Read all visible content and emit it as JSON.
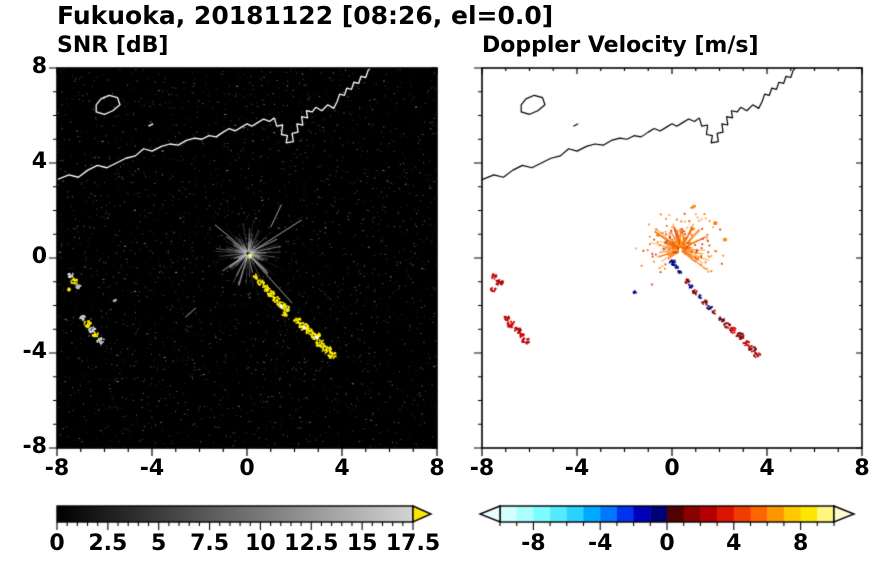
{
  "title": "Fukuoka, 20181122 [08:26, el=0.0]",
  "station": "Fukuoka",
  "date": "20181122",
  "time": "08:26",
  "elevation": "el=0.0",
  "coastline": {
    "segments": [
      [
        [
          -8,
          3.3
        ],
        [
          -7.5,
          3.5
        ],
        [
          -7.1,
          3.4
        ],
        [
          -6.7,
          3.7
        ],
        [
          -6.3,
          3.9
        ],
        [
          -5.9,
          3.8
        ],
        [
          -5.5,
          4.0
        ],
        [
          -5.1,
          4.2
        ],
        [
          -4.7,
          4.3
        ],
        [
          -4.35,
          4.6
        ],
        [
          -4.0,
          4.5
        ],
        [
          -3.6,
          4.7
        ],
        [
          -3.25,
          4.8
        ],
        [
          -2.9,
          4.75
        ],
        [
          -2.55,
          4.95
        ],
        [
          -2.2,
          5.05
        ],
        [
          -1.9,
          5.0
        ],
        [
          -1.6,
          5.15
        ],
        [
          -1.3,
          5.1
        ],
        [
          -1.0,
          5.3
        ],
        [
          -0.75,
          5.45
        ],
        [
          -0.5,
          5.35
        ],
        [
          -0.25,
          5.5
        ],
        [
          0.0,
          5.65
        ],
        [
          0.2,
          5.55
        ],
        [
          0.45,
          5.7
        ],
        [
          0.7,
          5.85
        ],
        [
          0.95,
          5.75
        ],
        [
          1.15,
          5.9
        ]
      ],
      [
        [
          1.15,
          5.9
        ],
        [
          1.25,
          5.55
        ],
        [
          1.5,
          5.6
        ],
        [
          1.45,
          5.2
        ],
        [
          1.7,
          5.15
        ],
        [
          1.65,
          4.85
        ],
        [
          1.95,
          4.9
        ],
        [
          1.9,
          5.25
        ],
        [
          2.15,
          5.3
        ],
        [
          2.1,
          5.65
        ],
        [
          2.35,
          5.6
        ],
        [
          2.3,
          5.95
        ],
        [
          2.55,
          5.9
        ],
        [
          2.5,
          6.2
        ],
        [
          2.75,
          6.15
        ],
        [
          2.9,
          6.35
        ]
      ],
      [
        [
          2.9,
          6.35
        ],
        [
          3.15,
          6.2
        ],
        [
          3.4,
          6.45
        ],
        [
          3.65,
          6.3
        ],
        [
          3.8,
          6.6
        ],
        [
          3.9,
          6.9
        ],
        [
          4.1,
          6.85
        ],
        [
          4.2,
          7.15
        ],
        [
          4.4,
          7.1
        ],
        [
          4.5,
          7.4
        ],
        [
          4.7,
          7.35
        ],
        [
          4.8,
          7.65
        ],
        [
          5.0,
          7.6
        ],
        [
          5.1,
          7.9
        ],
        [
          5.2,
          8.0
        ]
      ],
      [
        [
          -4.15,
          5.55
        ],
        [
          -3.95,
          5.65
        ]
      ]
    ],
    "islands": [
      [
        [
          -6.35,
          6.15
        ],
        [
          -6.0,
          6.05
        ],
        [
          -5.65,
          6.2
        ],
        [
          -5.35,
          6.45
        ],
        [
          -5.45,
          6.75
        ],
        [
          -5.8,
          6.85
        ],
        [
          -6.15,
          6.7
        ],
        [
          -6.35,
          6.45
        ]
      ]
    ]
  },
  "chart_data": [
    {
      "type": "heatmap",
      "subtype": "radar-ppi",
      "title": "SNR [dB]",
      "xlim": [
        -8,
        8
      ],
      "ylim": [
        -8,
        8
      ],
      "xticks": [
        -8,
        -4,
        0,
        4,
        8
      ],
      "yticks": [
        8,
        4,
        0,
        -4,
        -8
      ],
      "minor_tick_step": 1,
      "background": "#000000",
      "coast_color": "#ffffff",
      "colorbar": {
        "min": 0,
        "max": 17.5,
        "scale": "grayscale",
        "tick_values": [
          0,
          2.5,
          5,
          7.5,
          10,
          12.5,
          15,
          17.5
        ],
        "tick_labels": [
          "0",
          "2.5",
          "5",
          "7.5",
          "10",
          "12.5",
          "15",
          "17.5"
        ],
        "minor_tick_step": 0.5,
        "over_arrow_color": "#ffe600"
      },
      "features": {
        "noise": {
          "count": 4200,
          "seed": 7
        },
        "spray": {
          "cx": 0.05,
          "cy": 0.2,
          "count": 120,
          "rmin": 0.15,
          "rmax": 1.5,
          "color": "#c3c3c3"
        },
        "streaks": [
          [
            0.1,
            0.2,
            2.3,
            1.6
          ],
          [
            0.1,
            0.1,
            1.9,
            -1.9
          ],
          [
            0.1,
            0.2,
            -1.35,
            1.4
          ],
          [
            -2.6,
            -2.5,
            -2.15,
            -2.1
          ],
          [
            1.0,
            1.3,
            1.45,
            2.25
          ]
        ],
        "echo_blobs": [
          [
            0.08,
            0.12,
            0.07,
            "#ffff66"
          ],
          [
            0.35,
            -0.75,
            0.1,
            "#ffee00"
          ],
          [
            0.55,
            -1.0,
            0.12,
            "#ffee00"
          ],
          [
            0.78,
            -1.25,
            0.13,
            "#ffee00"
          ],
          [
            1.0,
            -1.5,
            0.14,
            "#ffee00"
          ],
          [
            1.2,
            -1.72,
            0.12,
            "#ffee00"
          ],
          [
            1.42,
            -1.95,
            0.15,
            "#ffee00"
          ],
          [
            1.45,
            -2.0,
            0.05,
            "#ffffff"
          ],
          [
            1.65,
            -2.1,
            0.12,
            "#eeee22"
          ],
          [
            1.55,
            -2.35,
            0.1,
            "#ffee00"
          ],
          [
            2.1,
            -2.6,
            0.13,
            "#ffee00"
          ],
          [
            2.35,
            -2.85,
            0.16,
            "#ffee00"
          ],
          [
            2.4,
            -2.9,
            0.06,
            "#ffffff"
          ],
          [
            2.6,
            -3.05,
            0.14,
            "#ffee00"
          ],
          [
            2.85,
            -3.25,
            0.17,
            "#ffee00"
          ],
          [
            2.9,
            -3.3,
            0.06,
            "#ffffff"
          ],
          [
            3.05,
            -3.55,
            0.15,
            "#ffee00"
          ],
          [
            3.3,
            -3.8,
            0.16,
            "#ffee00"
          ],
          [
            3.55,
            -4.05,
            0.14,
            "#ffee00"
          ],
          [
            -7.45,
            -0.7,
            0.1,
            "#dddddd"
          ],
          [
            -7.3,
            -0.95,
            0.12,
            "#ffee00"
          ],
          [
            -7.15,
            -1.15,
            0.09,
            "#cccccc"
          ],
          [
            -7.5,
            -1.3,
            0.07,
            "#ffee00"
          ],
          [
            -6.95,
            -2.5,
            0.1,
            "#dddddd"
          ],
          [
            -6.75,
            -2.75,
            0.13,
            "#ffee00"
          ],
          [
            -6.55,
            -3.0,
            0.12,
            "#dddddd"
          ],
          [
            -6.4,
            -3.2,
            0.11,
            "#ffee00"
          ],
          [
            -6.2,
            -3.45,
            0.13,
            "#cccccc"
          ],
          [
            -5.6,
            -1.75,
            0.05,
            "#aaaaaa"
          ]
        ]
      }
    },
    {
      "type": "heatmap",
      "subtype": "radar-ppi",
      "title": "Doppler Velocity [m/s]",
      "xlim": [
        -8,
        8
      ],
      "ylim": [
        -8,
        8
      ],
      "xticks": [
        -8,
        -4,
        0,
        4,
        8
      ],
      "yticks": [
        8,
        4,
        0,
        -4,
        -8
      ],
      "minor_tick_step": 1,
      "background": "#ffffff",
      "coast_color": "#000000",
      "colorbar": {
        "min": -10,
        "max": 10,
        "scale": "cyan-blue-navy-darkred-red-orange-yellow",
        "tick_values": [
          -8,
          -4,
          0,
          4,
          8
        ],
        "tick_labels": [
          "-8",
          "-4",
          "0",
          "4",
          "8"
        ],
        "minor_tick_step": 1,
        "colors": [
          "#d4ffff",
          "#aaffff",
          "#7dfcff",
          "#55eaff",
          "#2bd2ff",
          "#00aaff",
          "#0077ff",
          "#0033ee",
          "#0000bb",
          "#000077",
          "#550000",
          "#8b0000",
          "#b40000",
          "#dc1400",
          "#f03c00",
          "#ff6400",
          "#ff9600",
          "#ffc800",
          "#ffe600",
          "#fff780"
        ],
        "under_arrow_color": "#eaffff",
        "over_arrow_color": "#fffbd0"
      },
      "features": {
        "spray": {
          "cx": 0.35,
          "cy": 0.35,
          "count": 100,
          "rmin": 0.1,
          "rmax": 1.4,
          "angle_deg": [
            -40,
            220
          ],
          "colors": [
            "#ff8c00",
            "#ff7518",
            "#ff9a33",
            "#e84e00"
          ]
        },
        "scatter": {
          "count": 150,
          "rmax": 1.9,
          "angle_deg": [
            -40,
            230
          ],
          "colors": [
            "#ff8c00",
            "#ff6a00",
            "#ffa040",
            "#d43d00"
          ]
        },
        "echo_blobs": [
          [
            0.0,
            -0.15,
            0.12,
            "#000080"
          ],
          [
            0.15,
            -0.35,
            0.08,
            "#001a8c"
          ],
          [
            0.3,
            -0.55,
            0.06,
            "#00127a"
          ],
          [
            0.6,
            -0.95,
            0.09,
            "#8b0000"
          ],
          [
            0.75,
            -1.15,
            0.08,
            "#000080"
          ],
          [
            0.95,
            -1.4,
            0.1,
            "#8b0000"
          ],
          [
            1.15,
            -1.6,
            0.08,
            "#1a1a8c"
          ],
          [
            1.35,
            -1.85,
            0.1,
            "#8b0000"
          ],
          [
            1.55,
            -2.05,
            0.09,
            "#000066"
          ],
          [
            1.75,
            -2.25,
            0.08,
            "#8b0000"
          ],
          [
            2.05,
            -2.55,
            0.1,
            "#660000"
          ],
          [
            2.3,
            -2.8,
            0.11,
            "#8b0000"
          ],
          [
            2.55,
            -3.0,
            0.12,
            "#cc0000"
          ],
          [
            2.85,
            -3.25,
            0.14,
            "#8b0000"
          ],
          [
            3.1,
            -3.55,
            0.12,
            "#cc0000"
          ],
          [
            3.35,
            -3.8,
            0.13,
            "#8b0000"
          ],
          [
            3.55,
            -4.05,
            0.11,
            "#aa0000"
          ],
          [
            -7.5,
            -0.75,
            0.11,
            "#cc0000"
          ],
          [
            -7.3,
            -1.0,
            0.13,
            "#aa0000"
          ],
          [
            -7.55,
            -1.3,
            0.1,
            "#cc0000"
          ],
          [
            -7.0,
            -2.5,
            0.11,
            "#bb0000"
          ],
          [
            -6.8,
            -2.75,
            0.14,
            "#cc0000"
          ],
          [
            -6.55,
            -3.0,
            0.12,
            "#aa0000"
          ],
          [
            -6.4,
            -3.2,
            0.1,
            "#cc0000"
          ],
          [
            -6.2,
            -3.45,
            0.13,
            "#bb0000"
          ],
          [
            -1.6,
            -1.4,
            0.05,
            "#000080"
          ],
          [
            0.9,
            2.2,
            0.05,
            "#ff8800"
          ],
          [
            1.8,
            1.5,
            0.05,
            "#ff7700"
          ],
          [
            -0.6,
            1.0,
            0.04,
            "#ff9000"
          ],
          [
            2.2,
            0.8,
            0.05,
            "#ff8800"
          ]
        ]
      }
    }
  ]
}
